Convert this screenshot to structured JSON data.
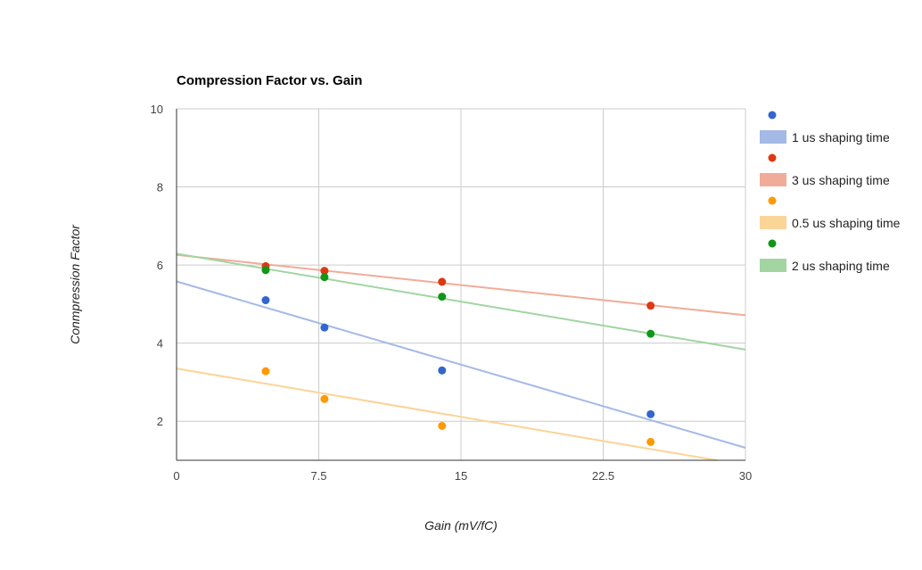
{
  "chart_data": {
    "type": "scatter",
    "title": "Compression Factor vs. Gain",
    "xlabel": "Gain (mV/fC)",
    "ylabel": "Conmpression Factor",
    "xlim": [
      0,
      30
    ],
    "ylim": [
      1,
      10
    ],
    "xticks": [
      "0",
      "7.5",
      "15",
      "22.5",
      "30"
    ],
    "yticks": [
      "2",
      "4",
      "6",
      "8",
      "10"
    ],
    "grid": true,
    "legend_position": "right",
    "series": [
      {
        "name": "1 us shaping time",
        "color": "#3366cc",
        "trend_color": "#a4b9e5",
        "x": [
          4.7,
          7.8,
          14.0,
          25.0
        ],
        "y": [
          5.1,
          4.4,
          3.3,
          2.18
        ],
        "trendline": {
          "slope": -0.142,
          "intercept": 5.58
        }
      },
      {
        "name": "3 us shaping time",
        "color": "#dc3912",
        "trend_color": "#f0ac99",
        "x": [
          4.7,
          7.8,
          14.0,
          25.0
        ],
        "y": [
          5.97,
          5.85,
          5.57,
          4.96
        ],
        "trendline": {
          "slope": -0.0515,
          "intercept": 6.26
        }
      },
      {
        "name": "0.5 us shaping time",
        "color": "#ff9900",
        "trend_color": "#fbd497",
        "x": [
          4.7,
          7.8,
          14.0,
          25.0
        ],
        "y": [
          3.28,
          2.57,
          1.88,
          1.47
        ],
        "trendline": {
          "slope": -0.0825,
          "intercept": 3.35
        }
      },
      {
        "name": "2 us shaping time",
        "color": "#109618",
        "trend_color": "#a2d5a1",
        "x": [
          4.7,
          7.8,
          14.0,
          25.0
        ],
        "y": [
          5.87,
          5.69,
          5.19,
          4.24
        ],
        "trendline": {
          "slope": -0.0818,
          "intercept": 6.29
        }
      }
    ]
  }
}
